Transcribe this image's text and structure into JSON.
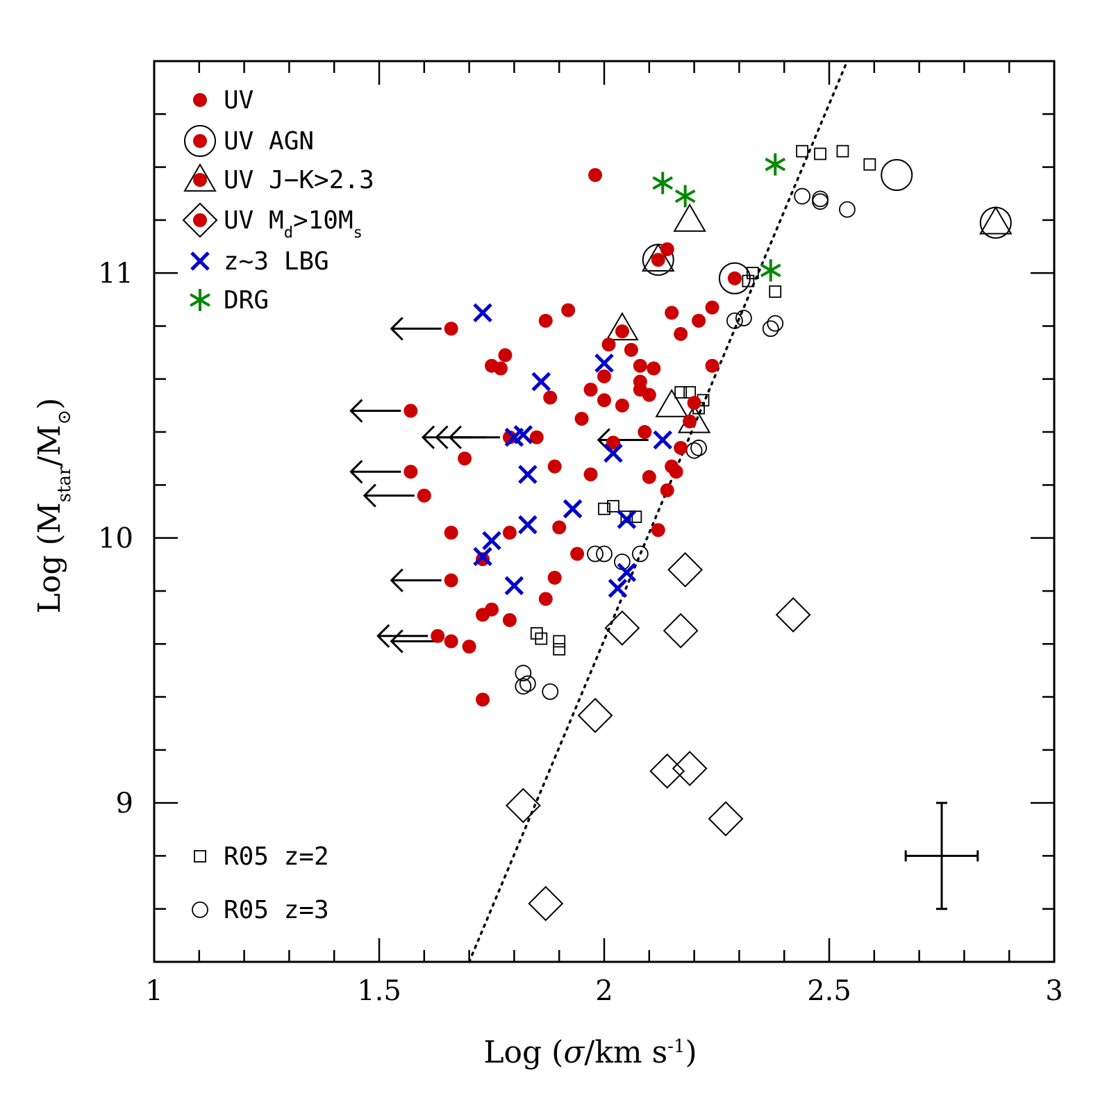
{
  "chart_data": {
    "type": "scatter",
    "title": "",
    "xlabel_parts": {
      "prefix": "Log (",
      "sigma": "σ",
      "unit": "/km s",
      "exp": "-1",
      "suffix": ")"
    },
    "ylabel_parts": {
      "prefix": "Log (M",
      "sub1": "star",
      "mid": "/M",
      "sub2": "⊙",
      "suffix": ")"
    },
    "xlim": [
      1.0,
      3.0
    ],
    "ylim": [
      8.4,
      11.8
    ],
    "x_ticks": [
      "1",
      "1.5",
      "2",
      "2.5",
      "3"
    ],
    "y_ticks": [
      "9",
      "10",
      "11"
    ],
    "legend_top": {
      "uv": "UV",
      "uv_agn": "UV AGN",
      "uv_jk": "UV J−K>2.3",
      "uv_md_prefix": "UV M",
      "uv_md_sub1": "d",
      "uv_md_mid": ">10M",
      "uv_md_sub2": "s",
      "lbg": "z~3 LBG",
      "drg": "DRG"
    },
    "legend_bottom": {
      "r05_z2": "R05 z=2",
      "r05_z3": "R05 z=3"
    },
    "colors": {
      "uv": "#cc0000",
      "lbg": "#0000cc",
      "drg": "#008800",
      "line": "#000000"
    },
    "relation_line": {
      "x": [
        1.7,
        2.54
      ],
      "y": [
        8.4,
        11.8
      ]
    },
    "error_bar": {
      "x": 2.75,
      "y": 8.8,
      "dx": 0.08,
      "dy": 0.2
    },
    "series": [
      {
        "name": "UV",
        "marker": "filled-circle",
        "points": [
          [
            1.98,
            11.37
          ],
          [
            2.14,
            11.09
          ],
          [
            2.12,
            11.05
          ],
          [
            2.29,
            10.98
          ],
          [
            2.24,
            10.87
          ],
          [
            2.21,
            10.82
          ],
          [
            2.15,
            10.85
          ],
          [
            1.92,
            10.86
          ],
          [
            1.87,
            10.82
          ],
          [
            2.17,
            10.77
          ],
          [
            2.04,
            10.78
          ],
          [
            1.66,
            10.79
          ],
          [
            2.01,
            10.73
          ],
          [
            2.06,
            10.71
          ],
          [
            1.78,
            10.69
          ],
          [
            1.75,
            10.65
          ],
          [
            1.77,
            10.64
          ],
          [
            2.08,
            10.65
          ],
          [
            2.11,
            10.64
          ],
          [
            2.24,
            10.65
          ],
          [
            2.0,
            10.61
          ],
          [
            1.97,
            10.56
          ],
          [
            2.08,
            10.59
          ],
          [
            2.08,
            10.56
          ],
          [
            1.88,
            10.53
          ],
          [
            2.0,
            10.52
          ],
          [
            2.04,
            10.5
          ],
          [
            2.1,
            10.54
          ],
          [
            2.2,
            10.51
          ],
          [
            1.57,
            10.48
          ],
          [
            1.95,
            10.45
          ],
          [
            2.19,
            10.44
          ],
          [
            2.09,
            10.4
          ],
          [
            1.79,
            10.38
          ],
          [
            1.85,
            10.38
          ],
          [
            2.02,
            10.36
          ],
          [
            2.17,
            10.34
          ],
          [
            1.69,
            10.3
          ],
          [
            2.15,
            10.27
          ],
          [
            1.89,
            10.27
          ],
          [
            2.16,
            10.25
          ],
          [
            1.57,
            10.25
          ],
          [
            1.97,
            10.24
          ],
          [
            2.1,
            10.23
          ],
          [
            1.6,
            10.16
          ],
          [
            2.14,
            10.18
          ],
          [
            1.66,
            10.02
          ],
          [
            1.79,
            10.02
          ],
          [
            1.9,
            10.04
          ],
          [
            2.12,
            10.03
          ],
          [
            1.94,
            9.94
          ],
          [
            1.73,
            9.92
          ],
          [
            1.89,
            9.85
          ],
          [
            1.66,
            9.84
          ],
          [
            1.87,
            9.77
          ],
          [
            1.75,
            9.73
          ],
          [
            1.73,
            9.71
          ],
          [
            1.79,
            9.69
          ],
          [
            1.63,
            9.63
          ],
          [
            1.66,
            9.61
          ],
          [
            1.7,
            9.59
          ],
          [
            1.73,
            9.39
          ]
        ]
      },
      {
        "name": "UV AGN",
        "marker": "circle-dot",
        "points": [
          [
            2.12,
            11.05
          ],
          [
            2.29,
            10.98
          ],
          [
            2.65,
            11.37
          ],
          [
            2.87,
            11.19
          ]
        ]
      },
      {
        "name": "UV J-K>2.3",
        "marker": "triangle-dot",
        "points": [
          [
            2.19,
            11.2
          ],
          [
            2.12,
            11.05
          ],
          [
            2.04,
            10.79
          ],
          [
            2.15,
            10.5
          ],
          [
            2.2,
            10.44
          ],
          [
            2.87,
            11.19
          ]
        ]
      },
      {
        "name": "UV Md>10Ms",
        "marker": "diamond-dot",
        "points": [
          [
            2.18,
            9.88
          ],
          [
            2.42,
            9.71
          ],
          [
            2.04,
            9.66
          ],
          [
            2.17,
            9.65
          ],
          [
            1.98,
            9.33
          ],
          [
            2.14,
            9.12
          ],
          [
            2.19,
            9.13
          ],
          [
            1.82,
            8.99
          ],
          [
            2.27,
            8.94
          ],
          [
            1.87,
            8.62
          ]
        ]
      },
      {
        "name": "z~3 LBG",
        "marker": "cross",
        "points": [
          [
            1.73,
            10.85
          ],
          [
            2.0,
            10.66
          ],
          [
            1.86,
            10.59
          ],
          [
            1.8,
            10.38
          ],
          [
            1.82,
            10.39
          ],
          [
            2.13,
            10.37
          ],
          [
            2.02,
            10.32
          ],
          [
            1.83,
            10.24
          ],
          [
            1.93,
            10.11
          ],
          [
            2.05,
            10.07
          ],
          [
            1.83,
            10.05
          ],
          [
            1.75,
            9.99
          ],
          [
            1.73,
            9.93
          ],
          [
            2.05,
            9.87
          ],
          [
            1.8,
            9.82
          ],
          [
            2.03,
            9.81
          ]
        ]
      },
      {
        "name": "DRG",
        "marker": "star",
        "points": [
          [
            2.13,
            11.34
          ],
          [
            2.18,
            11.29
          ],
          [
            2.38,
            11.41
          ],
          [
            2.37,
            11.01
          ]
        ]
      },
      {
        "name": "R05 z=2",
        "marker": "open-square",
        "points": [
          [
            2.44,
            11.46
          ],
          [
            2.48,
            11.45
          ],
          [
            2.53,
            11.46
          ],
          [
            2.59,
            11.41
          ],
          [
            2.33,
            11.0
          ],
          [
            2.32,
            10.97
          ],
          [
            2.38,
            10.93
          ],
          [
            2.17,
            10.55
          ],
          [
            2.19,
            10.55
          ],
          [
            2.22,
            10.52
          ],
          [
            2.21,
            10.49
          ],
          [
            2.0,
            10.11
          ],
          [
            2.02,
            10.12
          ],
          [
            2.05,
            10.08
          ],
          [
            2.07,
            10.08
          ],
          [
            1.85,
            9.64
          ],
          [
            1.86,
            9.62
          ],
          [
            1.9,
            9.61
          ],
          [
            1.9,
            9.58
          ]
        ]
      },
      {
        "name": "R05 z=3",
        "marker": "open-circle",
        "points": [
          [
            2.44,
            11.29
          ],
          [
            2.48,
            11.28
          ],
          [
            2.48,
            11.27
          ],
          [
            2.54,
            11.24
          ],
          [
            2.31,
            10.83
          ],
          [
            2.29,
            10.82
          ],
          [
            2.37,
            10.79
          ],
          [
            2.38,
            10.81
          ],
          [
            2.21,
            10.34
          ],
          [
            2.2,
            10.33
          ],
          [
            1.98,
            9.94
          ],
          [
            2.0,
            9.94
          ],
          [
            2.04,
            9.91
          ],
          [
            2.08,
            9.94
          ],
          [
            1.82,
            9.49
          ],
          [
            1.83,
            9.45
          ],
          [
            1.82,
            9.44
          ],
          [
            1.88,
            9.42
          ]
        ]
      },
      {
        "name": "upper limits",
        "marker": "left-arrow",
        "points": [
          [
            1.66,
            10.79
          ],
          [
            1.57,
            10.48
          ],
          [
            1.79,
            10.38
          ],
          [
            1.76,
            10.38
          ],
          [
            1.73,
            10.38
          ],
          [
            2.12,
            10.37
          ],
          [
            1.57,
            10.25
          ],
          [
            1.6,
            10.16
          ],
          [
            1.66,
            9.84
          ],
          [
            1.63,
            9.63
          ],
          [
            1.66,
            9.61
          ]
        ]
      }
    ]
  }
}
